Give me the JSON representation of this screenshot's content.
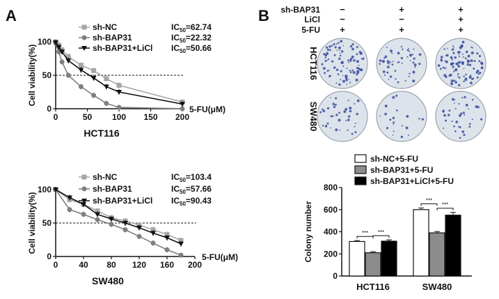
{
  "panel_a": {
    "label": "A"
  },
  "panel_b": {
    "label": "B"
  },
  "chart_data": [
    {
      "type": "line",
      "title": "HCT116",
      "xlabel": "5-FU(μM)",
      "ylabel": "Cell viability(%)",
      "xlim": [
        0,
        200
      ],
      "ylim": [
        0,
        100
      ],
      "xticks": [
        "0",
        "50",
        "100",
        "150",
        "200"
      ],
      "yticks": [
        "0",
        "50",
        "100"
      ],
      "reference_line": 50,
      "series": [
        {
          "name": "sh-NC",
          "ic50_label": "IC",
          "ic50_sub": "50",
          "ic50_value": "=62.74",
          "color": "#a6a6a6",
          "marker": "square",
          "x": [
            0,
            5,
            10,
            20,
            40,
            60,
            80,
            100,
            200
          ],
          "y": [
            100,
            95,
            88,
            78,
            65,
            57,
            45,
            35,
            10
          ]
        },
        {
          "name": "sh-BAP31",
          "ic50_label": "IC",
          "ic50_sub": "50",
          "ic50_value": "=22.32",
          "color": "#7f7f7f",
          "marker": "circle",
          "x": [
            0,
            5,
            10,
            20,
            40,
            60,
            80,
            100,
            200
          ],
          "y": [
            98,
            85,
            70,
            50,
            33,
            20,
            8,
            2,
            0
          ]
        },
        {
          "name": "sh-BAP31+LiCl",
          "ic50_label": "IC",
          "ic50_sub": "50",
          "ic50_value": "=50.66",
          "color": "#111111",
          "marker": "triangle-down",
          "x": [
            0,
            5,
            10,
            20,
            40,
            60,
            80,
            100,
            200
          ],
          "y": [
            99,
            92,
            85,
            72,
            58,
            46,
            33,
            25,
            7
          ]
        }
      ]
    },
    {
      "type": "line",
      "title": "SW480",
      "xlabel": "5-FU(μM)",
      "ylabel": "Cell viability(%)",
      "xlim": [
        0,
        200
      ],
      "ylim": [
        0,
        100
      ],
      "xticks": [
        "0",
        "40",
        "80",
        "120",
        "160",
        "200"
      ],
      "yticks": [
        "0",
        "50",
        "100"
      ],
      "reference_line": 50,
      "series": [
        {
          "name": "sh-NC",
          "ic50_label": "IC",
          "ic50_sub": "50",
          "ic50_value": "=103.4",
          "color": "#a6a6a6",
          "marker": "square",
          "x": [
            0,
            20,
            40,
            60,
            80,
            100,
            120,
            140,
            160,
            180
          ],
          "y": [
            100,
            85,
            78,
            68,
            58,
            53,
            47,
            40,
            33,
            24
          ]
        },
        {
          "name": "sh-BAP31",
          "ic50_label": "IC",
          "ic50_sub": "50",
          "ic50_value": "=57.66",
          "color": "#7f7f7f",
          "marker": "circle",
          "x": [
            0,
            20,
            40,
            60,
            80,
            100,
            120,
            140,
            160,
            180
          ],
          "y": [
            100,
            70,
            63,
            55,
            48,
            40,
            30,
            20,
            10,
            2
          ]
        },
        {
          "name": "sh-BAP31+LiCl",
          "ic50_label": "IC",
          "ic50_sub": "50",
          "ic50_value": "=90.43",
          "color": "#111111",
          "marker": "triangle-down",
          "x": [
            0,
            20,
            40,
            60,
            80,
            100,
            120,
            140,
            160,
            180
          ],
          "y": [
            100,
            88,
            78,
            63,
            56,
            50,
            43,
            35,
            28,
            19
          ]
        }
      ]
    },
    {
      "type": "bar",
      "xlabel": "",
      "ylabel": "Colony number",
      "ylim": [
        0,
        800
      ],
      "yticks": [
        "0",
        "200",
        "400",
        "600",
        "800"
      ],
      "categories": [
        "HCT116",
        "SW480"
      ],
      "significance": "***",
      "series": [
        {
          "name": "sh-NC+5-FU",
          "color": "#ffffff",
          "values": [
            312,
            600
          ],
          "errors": [
            8,
            15
          ]
        },
        {
          "name": "sh-BAP31+5-FU",
          "color": "#8c8c8c",
          "values": [
            210,
            390
          ],
          "errors": [
            10,
            12
          ]
        },
        {
          "name": "sh-BAP31+LiCl+5-FU",
          "color": "#000000",
          "values": [
            315,
            550
          ],
          "errors": [
            12,
            25
          ]
        }
      ]
    }
  ],
  "colony_assay": {
    "row_labels": [
      "sh-BAP31",
      "LiCl",
      "5-FU"
    ],
    "columns": [
      {
        "sh-BAP31": "−",
        "LiCl": "−",
        "5-FU": "+"
      },
      {
        "sh-BAP31": "+",
        "LiCl": "−",
        "5-FU": "+"
      },
      {
        "sh-BAP31": "+",
        "LiCl": "+",
        "5-FU": "+"
      }
    ],
    "cell_lines": [
      "HCT116",
      "SW480"
    ],
    "dish_density": [
      [
        0.45,
        0.25,
        0.5
      ],
      [
        0.2,
        0.1,
        0.18
      ]
    ],
    "colors": {
      "plate_bg": "#dde3ea",
      "colony": "#3b4f9e"
    }
  }
}
